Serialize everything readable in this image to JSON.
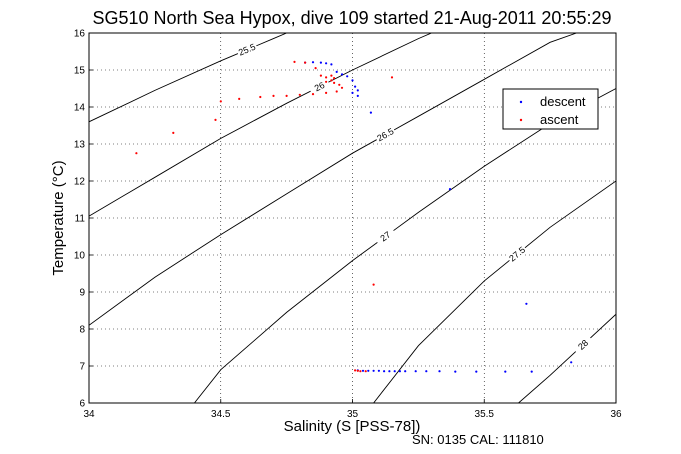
{
  "chart_data": {
    "type": "scatter",
    "title": "SG510 North Sea Hypox, dive 109 started 21-Aug-2011 20:55:29",
    "xlabel": "Salinity (S [PSS-78])",
    "ylabel": "Temperature (°C)",
    "xlim": [
      34,
      36
    ],
    "ylim": [
      6,
      16
    ],
    "xticks": [
      "34",
      "34.5",
      "35",
      "35.5",
      "36"
    ],
    "yticks": [
      "6",
      "7",
      "8",
      "9",
      "10",
      "11",
      "12",
      "13",
      "14",
      "15",
      "16"
    ],
    "grid": true,
    "legend_position": "upper-right",
    "footnote": "SN: 0135  CAL: 111810",
    "contour_labels": [
      "25.5",
      "26",
      "26.5",
      "27",
      "27.5",
      "28"
    ],
    "contours": [
      {
        "label": "25.5",
        "points": [
          [
            34.0,
            13.6
          ],
          [
            34.25,
            14.45
          ],
          [
            34.5,
            15.25
          ],
          [
            34.7,
            15.85
          ],
          [
            34.75,
            16.0
          ]
        ]
      },
      {
        "label": "26",
        "points": [
          [
            34.0,
            11.05
          ],
          [
            34.25,
            12.1
          ],
          [
            34.5,
            13.15
          ],
          [
            34.75,
            14.1
          ],
          [
            35.0,
            15.0
          ],
          [
            35.25,
            15.85
          ],
          [
            35.3,
            16.0
          ]
        ]
      },
      {
        "label": "26.5",
        "points": [
          [
            34.0,
            8.1
          ],
          [
            34.25,
            9.4
          ],
          [
            34.5,
            10.55
          ],
          [
            34.75,
            11.65
          ],
          [
            35.0,
            12.75
          ],
          [
            35.25,
            13.75
          ],
          [
            35.5,
            14.75
          ],
          [
            35.75,
            15.75
          ],
          [
            35.85,
            16.0
          ]
        ]
      },
      {
        "label": "27",
        "points": [
          [
            34.4,
            6.0
          ],
          [
            34.5,
            6.9
          ],
          [
            34.75,
            8.45
          ],
          [
            35.0,
            9.85
          ],
          [
            35.25,
            11.15
          ],
          [
            35.5,
            12.4
          ],
          [
            35.75,
            13.55
          ],
          [
            36.0,
            14.5
          ]
        ]
      },
      {
        "label": "27.5",
        "points": [
          [
            35.08,
            6.0
          ],
          [
            35.25,
            7.55
          ],
          [
            35.5,
            9.3
          ],
          [
            35.75,
            10.75
          ],
          [
            36.0,
            12.0
          ]
        ]
      },
      {
        "label": "28",
        "points": [
          [
            35.63,
            6.0
          ],
          [
            35.75,
            6.75
          ],
          [
            36.0,
            8.4
          ]
        ]
      }
    ],
    "series": [
      {
        "name": "descent",
        "color": "#0000ff",
        "points": [
          [
            34.82,
            15.2
          ],
          [
            34.85,
            15.21
          ],
          [
            34.88,
            15.2
          ],
          [
            34.9,
            15.18
          ],
          [
            34.92,
            15.15
          ],
          [
            34.94,
            14.95
          ],
          [
            34.96,
            14.88
          ],
          [
            34.98,
            14.83
          ],
          [
            35.0,
            14.72
          ],
          [
            35.01,
            14.55
          ],
          [
            35.02,
            14.45
          ],
          [
            35.0,
            14.38
          ],
          [
            35.02,
            14.3
          ],
          [
            35.07,
            13.85
          ],
          [
            35.37,
            11.78
          ],
          [
            35.66,
            8.68
          ],
          [
            35.83,
            7.1
          ],
          [
            35.02,
            6.88
          ],
          [
            35.04,
            6.87
          ],
          [
            35.06,
            6.87
          ],
          [
            35.08,
            6.87
          ],
          [
            35.1,
            6.87
          ],
          [
            35.12,
            6.86
          ],
          [
            35.14,
            6.86
          ],
          [
            35.16,
            6.86
          ],
          [
            35.18,
            6.86
          ],
          [
            35.2,
            6.86
          ],
          [
            35.24,
            6.86
          ],
          [
            35.28,
            6.86
          ],
          [
            35.33,
            6.86
          ],
          [
            35.39,
            6.85
          ],
          [
            35.47,
            6.85
          ],
          [
            35.58,
            6.85
          ],
          [
            35.68,
            6.85
          ]
        ]
      },
      {
        "name": "ascent",
        "color": "#ff0000",
        "points": [
          [
            34.78,
            15.22
          ],
          [
            34.82,
            15.2
          ],
          [
            34.86,
            15.05
          ],
          [
            34.88,
            14.85
          ],
          [
            34.9,
            14.8
          ],
          [
            34.92,
            14.85
          ],
          [
            34.93,
            14.78
          ],
          [
            34.92,
            14.72
          ],
          [
            34.9,
            14.68
          ],
          [
            34.93,
            14.65
          ],
          [
            34.95,
            14.6
          ],
          [
            34.96,
            14.52
          ],
          [
            34.94,
            14.42
          ],
          [
            34.9,
            14.38
          ],
          [
            34.85,
            14.35
          ],
          [
            34.8,
            14.33
          ],
          [
            34.75,
            14.3
          ],
          [
            34.7,
            14.3
          ],
          [
            34.65,
            14.27
          ],
          [
            34.57,
            14.22
          ],
          [
            34.5,
            14.15
          ],
          [
            34.48,
            13.65
          ],
          [
            34.32,
            13.3
          ],
          [
            34.18,
            12.75
          ],
          [
            35.15,
            14.8
          ],
          [
            35.08,
            9.2
          ],
          [
            35.02,
            6.87
          ],
          [
            35.03,
            6.86
          ],
          [
            35.05,
            6.86
          ],
          [
            35.01,
            6.88
          ]
        ]
      }
    ]
  }
}
